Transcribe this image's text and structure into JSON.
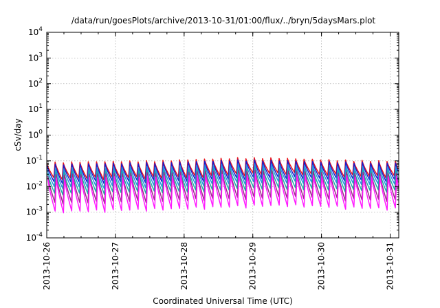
{
  "chart_data": {
    "type": "line",
    "title": "/data/run/goesPlots/archive/2013-10-31/01:00/flux/../bryn/5daysMars.plot",
    "xlabel": "Coordinated Universal Time (UTC)",
    "ylabel": "cSv/day",
    "yscale": "log",
    "ylim": [
      0.0001,
      10000
    ],
    "xlim": [
      "2013-10-26T00:00",
      "2013-10-31T03:00"
    ],
    "grid": true,
    "y_ticks": [
      {
        "base": "10",
        "exp": "-4"
      },
      {
        "base": "10",
        "exp": "-3"
      },
      {
        "base": "10",
        "exp": "-2"
      },
      {
        "base": "10",
        "exp": "-1"
      },
      {
        "base": "10",
        "exp": "0"
      },
      {
        "base": "10",
        "exp": "1"
      },
      {
        "base": "10",
        "exp": "2"
      },
      {
        "base": "10",
        "exp": "3"
      },
      {
        "base": "10",
        "exp": "4"
      }
    ],
    "x_ticks": [
      "2013-10-26",
      "2013-10-27",
      "2013-10-28",
      "2013-10-29",
      "2013-10-30",
      "2013-10-31"
    ],
    "orbit_period_hours": 2.9,
    "series": [
      {
        "color": "#e8141c",
        "peak_values": [
          0.085,
          0.09,
          0.095,
          0.1,
          0.115,
          0.13,
          0.125,
          0.11,
          0.1,
          0.095
        ],
        "trough_values": [
          0.02,
          0.021,
          0.022,
          0.022,
          0.025,
          0.03,
          0.032,
          0.028,
          0.025,
          0.024
        ]
      },
      {
        "color": "#1a1acc",
        "peak_values": [
          0.07,
          0.075,
          0.08,
          0.085,
          0.095,
          0.105,
          0.1,
          0.09,
          0.085,
          0.08
        ],
        "trough_values": [
          0.014,
          0.015,
          0.016,
          0.016,
          0.018,
          0.021,
          0.022,
          0.02,
          0.018,
          0.017
        ]
      },
      {
        "color": "#2a8fe0",
        "peak_values": [
          0.05,
          0.055,
          0.058,
          0.06,
          0.068,
          0.075,
          0.072,
          0.065,
          0.06,
          0.058
        ],
        "trough_values": [
          0.009,
          0.0095,
          0.01,
          0.01,
          0.012,
          0.014,
          0.015,
          0.013,
          0.012,
          0.011
        ]
      },
      {
        "color": "#18b0a8",
        "peak_values": [
          0.035,
          0.038,
          0.04,
          0.042,
          0.048,
          0.052,
          0.05,
          0.045,
          0.042,
          0.04
        ],
        "trough_values": [
          0.005,
          0.0055,
          0.006,
          0.006,
          0.007,
          0.008,
          0.0085,
          0.0075,
          0.007,
          0.0065
        ]
      },
      {
        "color": "#9b2a8a",
        "peak_values": [
          0.028,
          0.03,
          0.032,
          0.034,
          0.038,
          0.042,
          0.04,
          0.036,
          0.034,
          0.032
        ],
        "trough_values": [
          0.0022,
          0.0024,
          0.0026,
          0.0028,
          0.0032,
          0.0036,
          0.0038,
          0.0034,
          0.003,
          0.0028
        ]
      },
      {
        "color": "#ff1aff",
        "peak_values": [
          0.02,
          0.022,
          0.024,
          0.025,
          0.028,
          0.03,
          0.029,
          0.026,
          0.025,
          0.024
        ],
        "trough_values": [
          0.001,
          0.0011,
          0.0012,
          0.0013,
          0.0015,
          0.0017,
          0.0018,
          0.0016,
          0.0014,
          0.0013
        ]
      }
    ]
  }
}
